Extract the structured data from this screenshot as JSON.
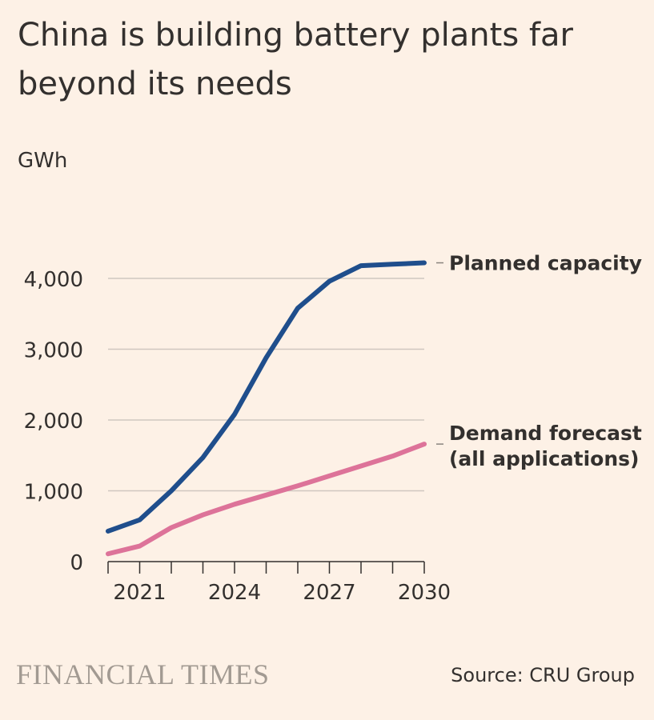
{
  "title": "China is building battery plants far beyond its needs",
  "unit_label": "GWh",
  "source": "Source: CRU Group",
  "logo_text": "FINANCIAL TIMES",
  "colors": {
    "background": "#fdf1e6",
    "planned": "#1f4e8c",
    "demand": "#dd7399",
    "grid": "#cfc7c0",
    "text": "#33302e",
    "logo": "#a29a92"
  },
  "chart_data": {
    "type": "line",
    "title": "China is building battery plants far beyond its needs",
    "ylabel": "GWh",
    "xlabel": "",
    "x": [
      2020,
      2021,
      2022,
      2023,
      2024,
      2025,
      2026,
      2027,
      2028,
      2029,
      2030
    ],
    "xlim": [
      2020,
      2030
    ],
    "ylim": [
      0,
      4000
    ],
    "xticks": [
      2021,
      2024,
      2027,
      2030
    ],
    "xtick_labels": [
      "2021",
      "2024",
      "2027",
      "2030"
    ],
    "yticks": [
      0,
      1000,
      2000,
      3000,
      4000
    ],
    "ytick_labels": [
      "0",
      "1,000",
      "2,000",
      "3,000",
      "4,000"
    ],
    "grid": "horizontal",
    "legend": "direct labels at right end of lines",
    "series": [
      {
        "name": "Planned capacity",
        "label_lines": [
          "Planned capacity"
        ],
        "values": [
          430,
          590,
          1000,
          1470,
          2080,
          2880,
          3580,
          3960,
          4180,
          4200,
          4220
        ]
      },
      {
        "name": "Demand forecast (all applications)",
        "label_lines": [
          "Demand forecast",
          "(all applications)"
        ],
        "values": [
          110,
          220,
          480,
          660,
          810,
          940,
          1070,
          1210,
          1350,
          1490,
          1660
        ]
      }
    ]
  }
}
